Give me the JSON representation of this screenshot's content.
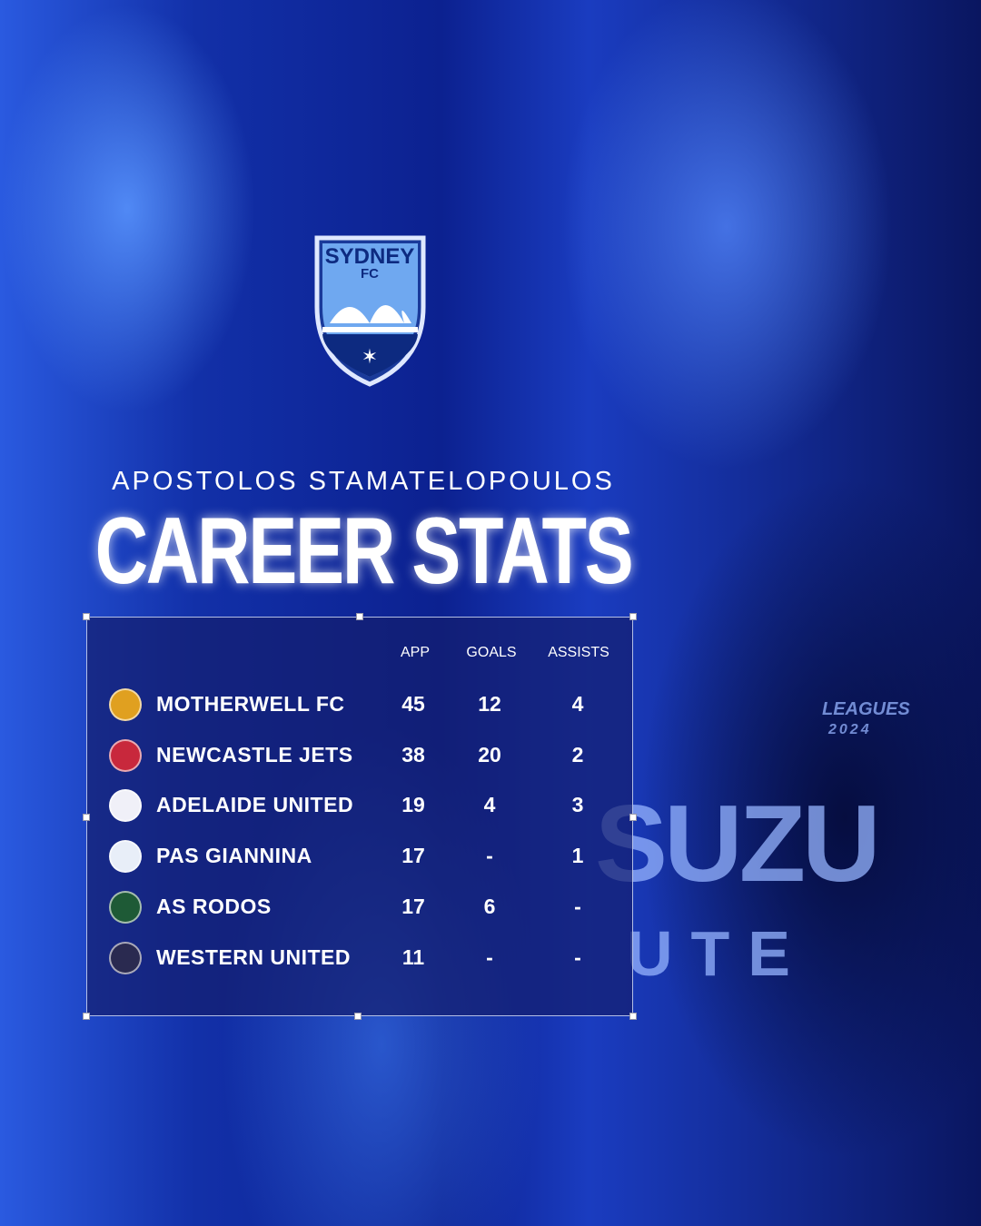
{
  "club_logo": {
    "text_line1": "SYDNEY",
    "text_line2": "FC"
  },
  "player_name": "APOSTOLOS STAMATELOPOULOS",
  "title": "CAREER STATS",
  "table": {
    "headers": [
      "APP",
      "GOALS",
      "ASSISTS"
    ],
    "rows": [
      {
        "team": "MOTHERWELL FC",
        "app": "45",
        "goals": "12",
        "assists": "4",
        "crest_color": "#e0a020"
      },
      {
        "team": "NEWCASTLE JETS",
        "app": "38",
        "goals": "20",
        "assists": "2",
        "crest_color": "#c8283c"
      },
      {
        "team": "ADELAIDE UNITED",
        "app": "19",
        "goals": "4",
        "assists": "3",
        "crest_color": "#f0f0f8"
      },
      {
        "team": "PAS GIANNINA",
        "app": "17",
        "goals": "-",
        "assists": "1",
        "crest_color": "#e8eef8"
      },
      {
        "team": "AS RODOS",
        "app": "17",
        "goals": "6",
        "assists": "-",
        "crest_color": "#1e5a36"
      },
      {
        "team": "WESTERN UNITED",
        "app": "11",
        "goals": "-",
        "assists": "-",
        "crest_color": "#2a2a50"
      }
    ]
  },
  "shirt": {
    "sponsor_line1": "SUZU",
    "sponsor_line2": "UTE",
    "league": "LEAGUES",
    "year": "2024"
  }
}
